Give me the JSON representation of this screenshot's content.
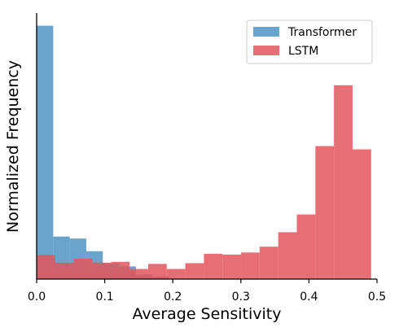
{
  "chart_data": {
    "type": "histogram",
    "xlabel": "Average Sensitivity",
    "ylabel": "Normalized Frequency",
    "xlim": [
      0.0,
      0.5
    ],
    "ylim": [
      0,
      1.05
    ],
    "xticks": [
      "0.0",
      "0.1",
      "0.2",
      "0.3",
      "0.4",
      "0.5"
    ],
    "xtick_values": [
      0.0,
      0.1,
      0.2,
      0.3,
      0.4,
      0.5
    ],
    "grid": false,
    "legend_position": "top-right",
    "series": [
      {
        "name": "Transformer",
        "color": "#4a90bf",
        "opacity": 0.82,
        "bin_width": 0.0243,
        "bins": [
          {
            "x0": 0.0,
            "value": 1.0
          },
          {
            "x0": 0.0243,
            "value": 0.168
          },
          {
            "x0": 0.0486,
            "value": 0.16
          },
          {
            "x0": 0.0729,
            "value": 0.11
          },
          {
            "x0": 0.0972,
            "value": 0.062
          },
          {
            "x0": 0.1215,
            "value": 0.05
          },
          {
            "x0": 0.1458,
            "value": 0.018
          },
          {
            "x0": 0.1701,
            "value": 0.01
          }
        ]
      },
      {
        "name": "LSTM",
        "color": "#e3555c",
        "opacity": 0.85,
        "bin_width": 0.0273,
        "bins": [
          {
            "x0": 0.0,
            "value": 0.095
          },
          {
            "x0": 0.0273,
            "value": 0.065
          },
          {
            "x0": 0.0546,
            "value": 0.08
          },
          {
            "x0": 0.0819,
            "value": 0.065
          },
          {
            "x0": 0.1092,
            "value": 0.068
          },
          {
            "x0": 0.1365,
            "value": 0.04
          },
          {
            "x0": 0.1638,
            "value": 0.06
          },
          {
            "x0": 0.1911,
            "value": 0.04
          },
          {
            "x0": 0.2184,
            "value": 0.063
          },
          {
            "x0": 0.2457,
            "value": 0.1
          },
          {
            "x0": 0.273,
            "value": 0.097
          },
          {
            "x0": 0.3003,
            "value": 0.105
          },
          {
            "x0": 0.3276,
            "value": 0.128
          },
          {
            "x0": 0.3549,
            "value": 0.185
          },
          {
            "x0": 0.3822,
            "value": 0.255
          },
          {
            "x0": 0.4095,
            "value": 0.525
          },
          {
            "x0": 0.4368,
            "value": 0.765
          },
          {
            "x0": 0.4641,
            "value": 0.512
          }
        ]
      }
    ]
  }
}
